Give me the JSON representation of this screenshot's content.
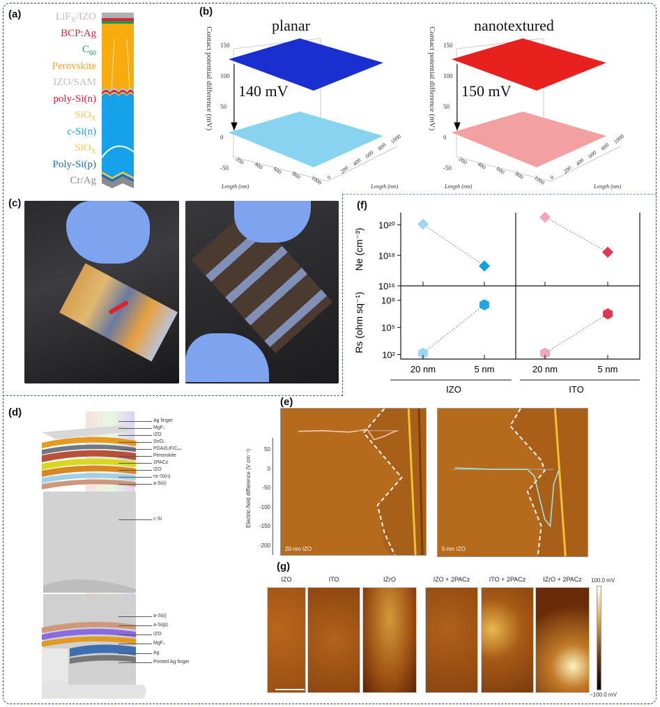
{
  "panels": {
    "a": "(a)",
    "b": "(b)",
    "c": "(c)",
    "d": "(d)",
    "e": "(e)",
    "f": "(f)",
    "g": "(g)"
  },
  "panel_a": {
    "layers": [
      {
        "main": "LiF",
        "sub": "X",
        "rest": "/IZO",
        "color": "#b9b9b9"
      },
      {
        "main": "BCP:Ag",
        "sub": "",
        "rest": "",
        "color": "#e0203a"
      },
      {
        "main": "C",
        "sub": "60",
        "rest": "",
        "color": "#1a9a4a"
      },
      {
        "main": "Perovskite",
        "sub": "",
        "rest": "",
        "color": "#f5a623"
      },
      {
        "main": "IZO/SAM",
        "sub": "",
        "rest": "",
        "color": "#bdbdbd"
      },
      {
        "main": "poly-Si(n)",
        "sub": "",
        "rest": "",
        "color": "#d81f3c"
      },
      {
        "main": "SiO",
        "sub": "X",
        "rest": "",
        "color": "#f3c64d"
      },
      {
        "main": "c-Si(n)",
        "sub": "",
        "rest": "",
        "color": "#1aa3e8"
      },
      {
        "main": "SiO",
        "sub": "X",
        "rest": "",
        "color": "#f3c64d"
      },
      {
        "main": "Poly-Si(p)",
        "sub": "",
        "rest": "",
        "color": "#1f6fb8"
      },
      {
        "main": "Cr/Ag",
        "sub": "",
        "rest": "",
        "color": "#8c8c8c"
      }
    ]
  },
  "panel_b": {
    "ylabel": "Contact potential difference (mV)",
    "xlabel": "Length (nm)",
    "zticks": [
      "150",
      "100",
      "50",
      "0",
      "-50"
    ],
    "xticks": [
      "200",
      "400",
      "600",
      "800",
      "1000"
    ],
    "yticks": [
      "0",
      "200",
      "400",
      "600",
      "800",
      "1000"
    ],
    "plots": [
      {
        "title": "planar",
        "delta": "140 mV",
        "top_color": "#1a2fd0",
        "bottom_color": "#86d4ef"
      },
      {
        "title": "nanotextured",
        "delta": "150 mV",
        "top_color": "#e8201e",
        "bottom_color": "#f3a0a0"
      }
    ]
  },
  "panel_d": {
    "labels_top": [
      "Ag finger",
      "MgF₂",
      "IZO",
      "SnO₂",
      "PDAI/LiF/C₆₀",
      "Perovskite",
      "2PACz",
      "IZO",
      "nc-Si(n)",
      "a-Si(i)"
    ],
    "label_mid": "c-Si",
    "labels_bottom": [
      "a-Si(i)",
      "a-Si(p)",
      "IZO",
      "MgF₂",
      "Ag",
      "Printed Ag finger"
    ]
  },
  "panel_e": {
    "ylabel": "Electric-field difference (V cm⁻¹)",
    "yticks": [
      "50",
      "0",
      "-50",
      "-100",
      "-150",
      "-200"
    ],
    "images": [
      "20-nm IZO",
      "5-nm IZO"
    ]
  },
  "panel_g": {
    "titles": [
      "IZO",
      "ITO",
      "IZrO",
      "IZO + 2PACz",
      "ITO + 2PACz",
      "IZrO + 2PACz"
    ],
    "colorbar_max": "100.0 mV",
    "colorbar_min": "−100.0 mV"
  },
  "chart_data": {
    "type": "scatter",
    "groups": [
      "IZO",
      "ITO"
    ],
    "categories": [
      "20 nm",
      "5 nm"
    ],
    "subplots": [
      {
        "ylabel": "Ne (cm⁻³)",
        "yscale": "log",
        "ylim_exp": [
          16,
          20.8
        ],
        "ytick_exp": [
          16,
          18,
          20
        ],
        "ytick_labels": [
          "10¹⁶",
          "10¹⁸",
          "10²⁰"
        ],
        "series": [
          {
            "name": "IZO",
            "values": [
              1.1e+20,
              2e+17
            ],
            "colors": [
              "#9dd6f2",
              "#0aa2e0"
            ],
            "marker": "diamond"
          },
          {
            "name": "ITO",
            "values": [
              3.2e+20,
              1.6e+18
            ],
            "colors": [
              "#eda6c0",
              "#e0384e"
            ],
            "marker": "diamond"
          }
        ]
      },
      {
        "ylabel": "Rs (ohm sq⁻¹)",
        "yscale": "log",
        "ylim_exp": [
          1.5,
          9.6
        ],
        "ytick_exp": [
          2,
          5,
          8
        ],
        "ytick_labels": [
          "10²",
          "10⁵",
          "10⁸"
        ],
        "series": [
          {
            "name": "IZO",
            "values": [
              140,
              32000000.0
            ],
            "colors": [
              "#9dd6f2",
              "#1aa8e6"
            ],
            "marker": "hexagon"
          },
          {
            "name": "ITO",
            "values": [
              140,
              3200000.0
            ],
            "colors": [
              "#eda6c0",
              "#e0384e"
            ],
            "marker": "hexagon"
          }
        ]
      }
    ]
  }
}
